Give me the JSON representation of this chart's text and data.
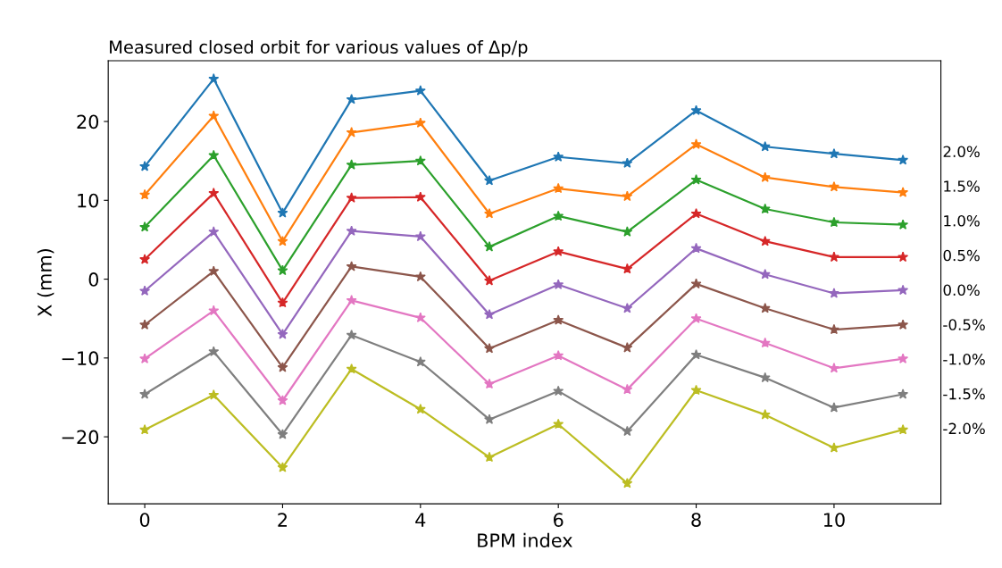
{
  "chart_data": {
    "type": "line",
    "title": "Measured closed orbit for various values of Δp/p",
    "xlabel": "BPM index",
    "ylabel": "X (mm)",
    "x": [
      0,
      1,
      2,
      3,
      4,
      5,
      6,
      7,
      8,
      9,
      10,
      11
    ],
    "series": [
      {
        "name": "2.0%",
        "color": "#1f77b4",
        "values": [
          14.3,
          25.4,
          8.4,
          22.8,
          23.9,
          12.5,
          15.5,
          14.7,
          21.4,
          16.8,
          15.9,
          15.1
        ]
      },
      {
        "name": "1.5%",
        "color": "#ff7f0e",
        "values": [
          10.7,
          20.7,
          4.8,
          18.6,
          19.8,
          8.3,
          11.5,
          10.5,
          17.1,
          12.9,
          11.7,
          11.0
        ]
      },
      {
        "name": "1.0%",
        "color": "#2ca02c",
        "values": [
          6.6,
          15.7,
          1.1,
          14.5,
          15.0,
          4.1,
          8.0,
          6.0,
          12.6,
          8.9,
          7.2,
          6.9
        ]
      },
      {
        "name": "0.5%",
        "color": "#d62728",
        "values": [
          2.5,
          10.9,
          -3.0,
          10.3,
          10.4,
          -0.2,
          3.5,
          1.3,
          8.3,
          4.8,
          2.8,
          2.8
        ]
      },
      {
        "name": "0.0%",
        "color": "#9467bd",
        "values": [
          -1.5,
          6.0,
          -7.0,
          6.1,
          5.4,
          -4.5,
          -0.7,
          -3.7,
          3.9,
          0.6,
          -1.8,
          -1.4
        ]
      },
      {
        "name": "-0.5%",
        "color": "#8c564b",
        "values": [
          -5.8,
          1.0,
          -11.2,
          1.6,
          0.3,
          -8.8,
          -5.2,
          -8.7,
          -0.6,
          -3.7,
          -6.4,
          -5.8
        ]
      },
      {
        "name": "-1.0%",
        "color": "#e377c2",
        "values": [
          -10.1,
          -4.0,
          -15.4,
          -2.7,
          -4.9,
          -13.3,
          -9.7,
          -14.0,
          -5.0,
          -8.1,
          -11.3,
          -10.1
        ]
      },
      {
        "name": "-1.5%",
        "color": "#7f7f7f",
        "values": [
          -14.6,
          -9.2,
          -19.7,
          -7.1,
          -10.5,
          -17.8,
          -14.2,
          -19.3,
          -9.6,
          -12.5,
          -16.3,
          -14.6
        ]
      },
      {
        "name": "-2.0%",
        "color": "#bcbd22",
        "values": [
          -19.1,
          -14.7,
          -23.9,
          -11.4,
          -16.5,
          -22.6,
          -18.4,
          -25.9,
          -14.1,
          -17.2,
          -21.4,
          -19.1
        ]
      }
    ],
    "xlim": [
      -0.53,
      11.55
    ],
    "ylim": [
      -28.5,
      27.7
    ],
    "xticks": [
      0,
      2,
      4,
      6,
      8,
      10
    ],
    "yticks": [
      -20,
      -10,
      0,
      10,
      20
    ],
    "marker": "star",
    "line_style": "solid",
    "grid": false
  }
}
